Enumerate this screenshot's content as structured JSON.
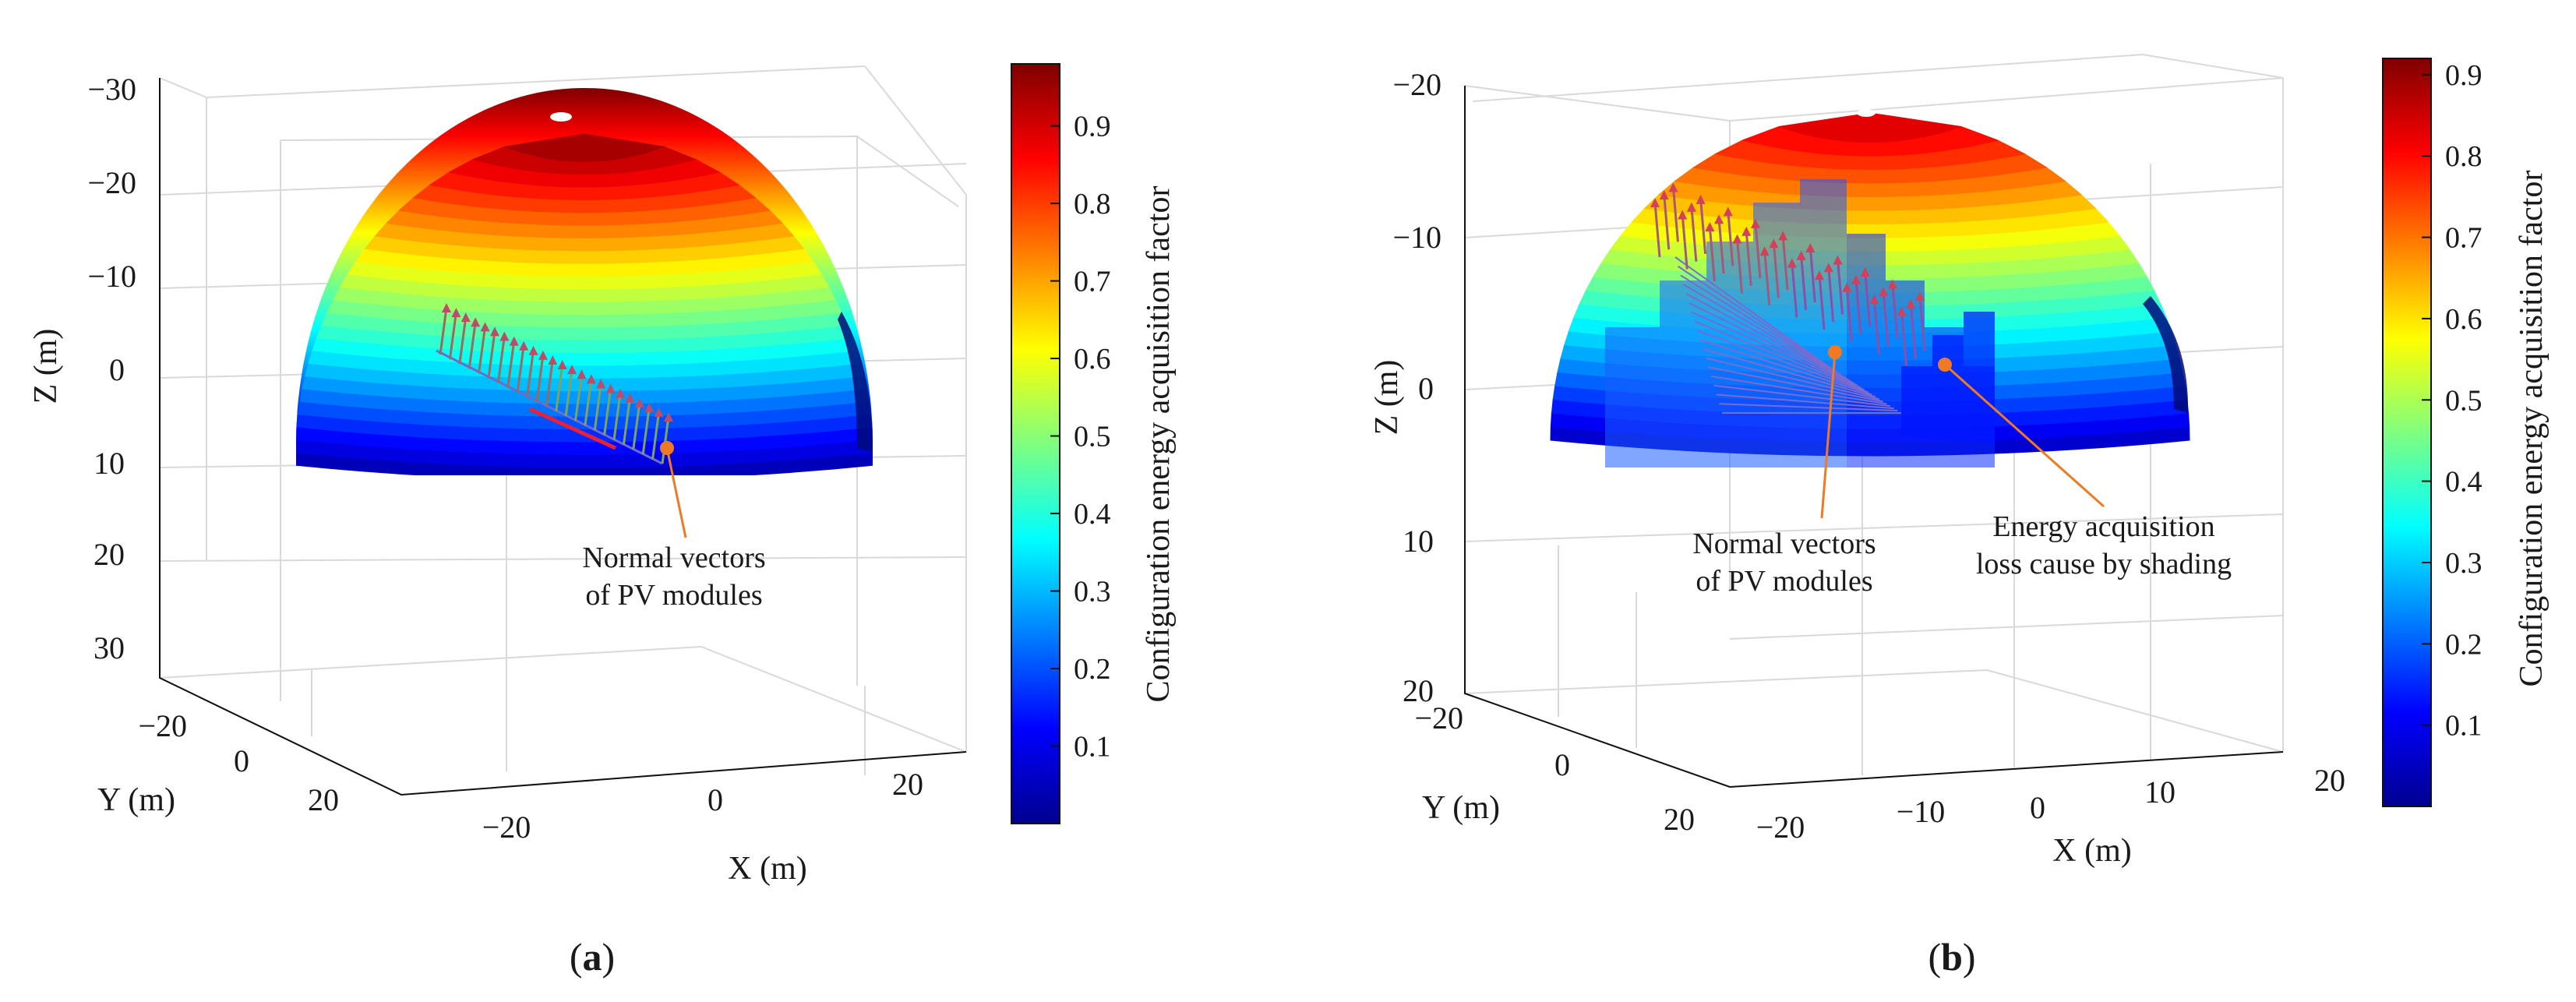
{
  "chart_data": [
    {
      "type": "surface3d",
      "panel_label": "(a)",
      "panel_letter": "a",
      "xlabel": "X (m)",
      "ylabel": "Y (m)",
      "zlabel": "Z (m)",
      "x_ticks": [
        "−20",
        "0",
        "20"
      ],
      "y_ticks": [
        "−20",
        "0",
        "20"
      ],
      "z_ticks": [
        "−30",
        "−20",
        "−10",
        "0",
        "10",
        "20",
        "30"
      ],
      "colorbar_label": "Configuration energy acquisition factor",
      "colorbar_ticks": [
        "0.1",
        "0.2",
        "0.3",
        "0.4",
        "0.5",
        "0.6",
        "0.7",
        "0.8",
        "0.9"
      ],
      "colorbar_range": [
        0.0,
        0.98
      ],
      "annotations": [
        {
          "line1": "Normal vectors",
          "line2": "of PV modules"
        }
      ]
    },
    {
      "type": "surface3d",
      "panel_label": "(b)",
      "panel_letter": "b",
      "xlabel": "X (m)",
      "ylabel": "Y (m)",
      "zlabel": "Z (m)",
      "x_ticks": [
        "−20",
        "−10",
        "0",
        "10",
        "20"
      ],
      "y_ticks": [
        "−20",
        "0",
        "20"
      ],
      "z_ticks": [
        "−20",
        "−10",
        "0",
        "10",
        "20"
      ],
      "colorbar_label": "Configuration energy acquisition factor",
      "colorbar_ticks": [
        "0.1",
        "0.2",
        "0.3",
        "0.4",
        "0.5",
        "0.6",
        "0.7",
        "0.8",
        "0.9"
      ],
      "colorbar_range": [
        0.0,
        0.92
      ],
      "annotations": [
        {
          "line1": "Normal vectors",
          "line2": "of PV modules"
        },
        {
          "line1": "Energy acquisition",
          "line2": "loss cause by shading"
        }
      ]
    }
  ]
}
